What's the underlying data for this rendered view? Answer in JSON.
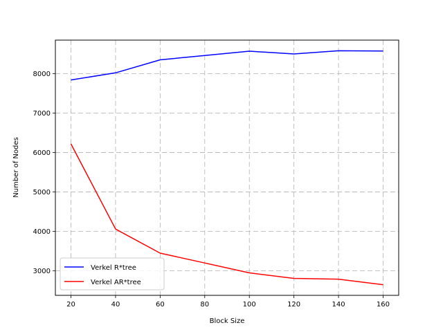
{
  "chart_data": {
    "type": "line",
    "title": "",
    "xlabel": "Block Size",
    "ylabel": "Number of Nodes",
    "x": [
      20,
      40,
      60,
      80,
      100,
      120,
      140,
      160
    ],
    "xlim": [
      13,
      167
    ],
    "ylim": [
      2380,
      8850
    ],
    "xticks": [
      20,
      40,
      60,
      80,
      100,
      120,
      140,
      160
    ],
    "yticks": [
      3000,
      4000,
      5000,
      6000,
      7000,
      8000
    ],
    "grid": true,
    "legend_position": "lower-left",
    "series": [
      {
        "name": "Verkel R*tree",
        "color": "#0000ff",
        "values": [
          7840,
          8020,
          8350,
          8460,
          8570,
          8500,
          8580,
          8575
        ]
      },
      {
        "name": "Verkel AR*tree",
        "color": "#ff0000",
        "values": [
          6220,
          4060,
          3450,
          3200,
          2950,
          2810,
          2790,
          2650
        ]
      }
    ]
  }
}
